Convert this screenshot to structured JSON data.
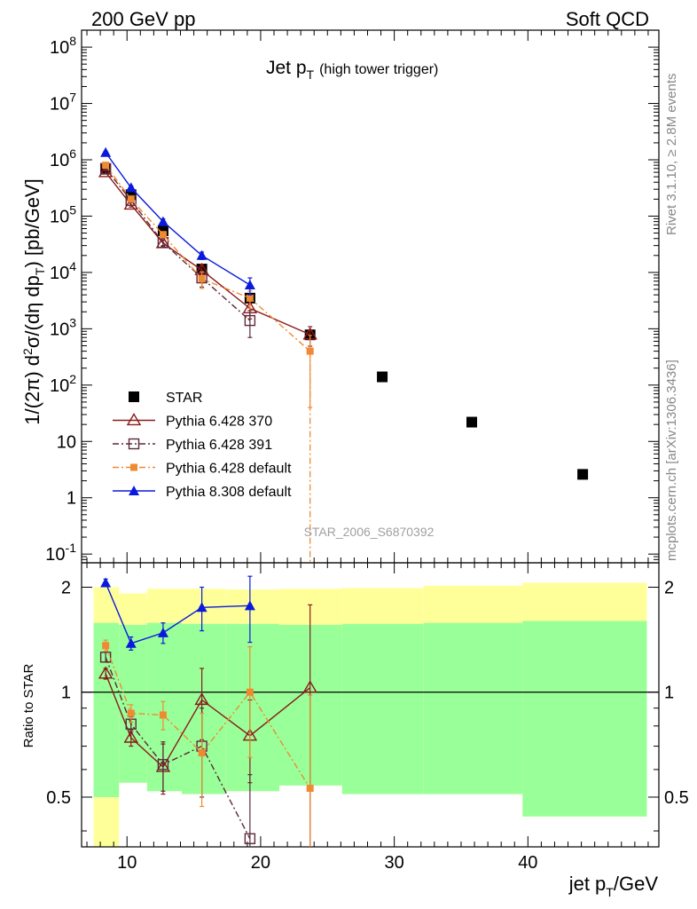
{
  "header": {
    "left": "200 GeV pp",
    "right": "Soft QCD"
  },
  "side": {
    "rivet": "Rivet 3.1.10, ≥ 2.8M events",
    "mcplots": "mcplots.cern.ch [arXiv:1306.3436]"
  },
  "chart_data": [
    {
      "type": "scatter",
      "title_main": "Jet p",
      "title_sub": "T",
      "title_note": "(high tower trigger)",
      "ylabel": "1/(2π) d²σ/(dη dp_T) [pb/GeV]",
      "yscale": "log",
      "ylim": [
        0.07,
        200000000
      ],
      "xlim": [
        6.6,
        49.8
      ],
      "ytick_labels": [
        "10^-1",
        "1",
        "10",
        "10^2",
        "10^3",
        "10^4",
        "10^5",
        "10^6",
        "10^7",
        "10^8"
      ],
      "watermark": "STAR_2006_S6870392",
      "legend_position": "bottom-left",
      "series": [
        {
          "name": "STAR",
          "color": "#000000",
          "marker": "square-filled",
          "x": [
            8.4,
            10.3,
            12.7,
            15.6,
            19.2,
            23.7,
            29.1,
            35.8,
            44.1
          ],
          "y": [
            680000,
            240000,
            55000,
            11500,
            3500,
            780,
            140,
            22,
            2.6
          ],
          "err": [
            0,
            0,
            0,
            0,
            0,
            0,
            0,
            0,
            0
          ]
        },
        {
          "name": "Pythia 6.428 370",
          "color": "#8b1a1a",
          "marker": "triangle-open",
          "dash": "",
          "x": [
            8.4,
            10.3,
            12.7,
            15.6,
            19.2,
            23.7
          ],
          "y": [
            600000,
            160000,
            33000,
            11000,
            2300,
            790
          ],
          "err": [
            40000,
            15000,
            4000,
            3000,
            800,
            300
          ]
        },
        {
          "name": "Pythia 6.428 391",
          "color": "#5c2a3a",
          "marker": "square-open",
          "dash": "7,3,2,3",
          "x": [
            8.4,
            10.3,
            12.7,
            15.6,
            19.2
          ],
          "y": [
            700000,
            190000,
            34000,
            8000,
            1400
          ],
          "err": [
            40000,
            15000,
            4000,
            2500,
            700
          ]
        },
        {
          "name": "Pythia 6.428 default",
          "color": "#f08a32",
          "marker": "square-filled-small",
          "dash": "7,3,2,3",
          "x": [
            8.4,
            10.3,
            12.7,
            15.6,
            19.2,
            23.7
          ],
          "y": [
            800000,
            200000,
            47000,
            7700,
            3500,
            400
          ],
          "err": [
            40000,
            15000,
            4000,
            2500,
            1200,
            360
          ]
        },
        {
          "name": "Pythia 8.308 default",
          "color": "#0a1adc",
          "marker": "triangle-filled",
          "dash": "",
          "x": [
            8.4,
            10.3,
            12.7,
            15.6,
            19.2
          ],
          "y": [
            1350000,
            320000,
            80000,
            20000,
            6000
          ],
          "err": [
            60000,
            25000,
            9000,
            3000,
            2000
          ]
        }
      ]
    },
    {
      "type": "scatter",
      "xlabel_main": "jet p",
      "xlabel_sub": "T",
      "xlabel_unit": "/GeV",
      "ylabel": "Ratio to STAR",
      "yscale": "log",
      "ylim": [
        0.36,
        2.35
      ],
      "xlim": [
        6.6,
        49.8
      ],
      "xticks": [
        10,
        20,
        30,
        40
      ],
      "yticks": [
        0.5,
        1,
        2
      ],
      "reference_line": 1,
      "bands": {
        "yellow_color": "#ffff99",
        "green_color": "#99ff99",
        "bins": [
          {
            "x0": 7.5,
            "x1": 9.4,
            "y0": 0.36,
            "y1": 2.0,
            "g0": 0.5,
            "g1": 1.58
          },
          {
            "x0": 9.4,
            "x1": 11.5,
            "y0": 0.55,
            "y1": 1.92,
            "g0": 0.55,
            "g1": 1.56
          },
          {
            "x0": 11.5,
            "x1": 14.1,
            "y0": 0.52,
            "y1": 1.98,
            "g0": 0.52,
            "g1": 1.58
          },
          {
            "x0": 14.1,
            "x1": 17.4,
            "y0": 0.51,
            "y1": 1.98,
            "g0": 0.51,
            "g1": 1.57
          },
          {
            "x0": 17.4,
            "x1": 21.4,
            "y0": 0.52,
            "y1": 1.97,
            "g0": 0.52,
            "g1": 1.57
          },
          {
            "x0": 21.4,
            "x1": 26.1,
            "y0": 0.54,
            "y1": 1.98,
            "g0": 0.54,
            "g1": 1.56
          },
          {
            "x0": 26.1,
            "x1": 32.2,
            "y0": 0.51,
            "y1": 1.99,
            "g0": 0.51,
            "g1": 1.57
          },
          {
            "x0": 32.2,
            "x1": 39.6,
            "y0": 0.51,
            "y1": 2.02,
            "g0": 0.51,
            "g1": 1.58
          },
          {
            "x0": 39.6,
            "x1": 48.9,
            "y0": 0.44,
            "y1": 2.06,
            "g0": 0.44,
            "g1": 1.6
          }
        ]
      },
      "series": [
        {
          "name": "Pythia 6.428 370",
          "color": "#8b1a1a",
          "marker": "triangle-open",
          "dash": "",
          "x": [
            8.4,
            10.3,
            12.7,
            15.6,
            19.2,
            23.7
          ],
          "y": [
            1.13,
            0.74,
            0.61,
            0.95,
            0.75,
            1.03
          ],
          "err": [
            0.04,
            0.04,
            0.1,
            0.22,
            0.2,
            0.75
          ]
        },
        {
          "name": "Pythia 6.428 391",
          "color": "#5c2a3a",
          "marker": "square-open",
          "dash": "7,3,2,3",
          "x": [
            8.4,
            10.3,
            12.7,
            15.6,
            19.2
          ],
          "y": [
            1.26,
            0.81,
            0.62,
            0.7,
            0.38
          ],
          "err": [
            0.04,
            0.04,
            0.1,
            0.2,
            0.2
          ]
        },
        {
          "name": "Pythia 6.428 default",
          "color": "#f08a32",
          "marker": "square-filled-small",
          "dash": "7,3,2,3",
          "x": [
            8.4,
            10.3,
            12.7,
            15.6,
            19.2,
            23.7
          ],
          "y": [
            1.36,
            0.87,
            0.86,
            0.67,
            1.0,
            0.53
          ],
          "err": [
            0.05,
            0.05,
            0.08,
            0.2,
            0.35,
            0.45
          ]
        },
        {
          "name": "Pythia 8.308 default",
          "color": "#0a1adc",
          "marker": "triangle-filled",
          "dash": "",
          "x": [
            8.4,
            10.3,
            12.7,
            15.6,
            19.2
          ],
          "y": [
            2.06,
            1.38,
            1.48,
            1.75,
            1.77
          ],
          "err": [
            0.05,
            0.06,
            0.1,
            0.25,
            0.38
          ]
        }
      ]
    }
  ]
}
